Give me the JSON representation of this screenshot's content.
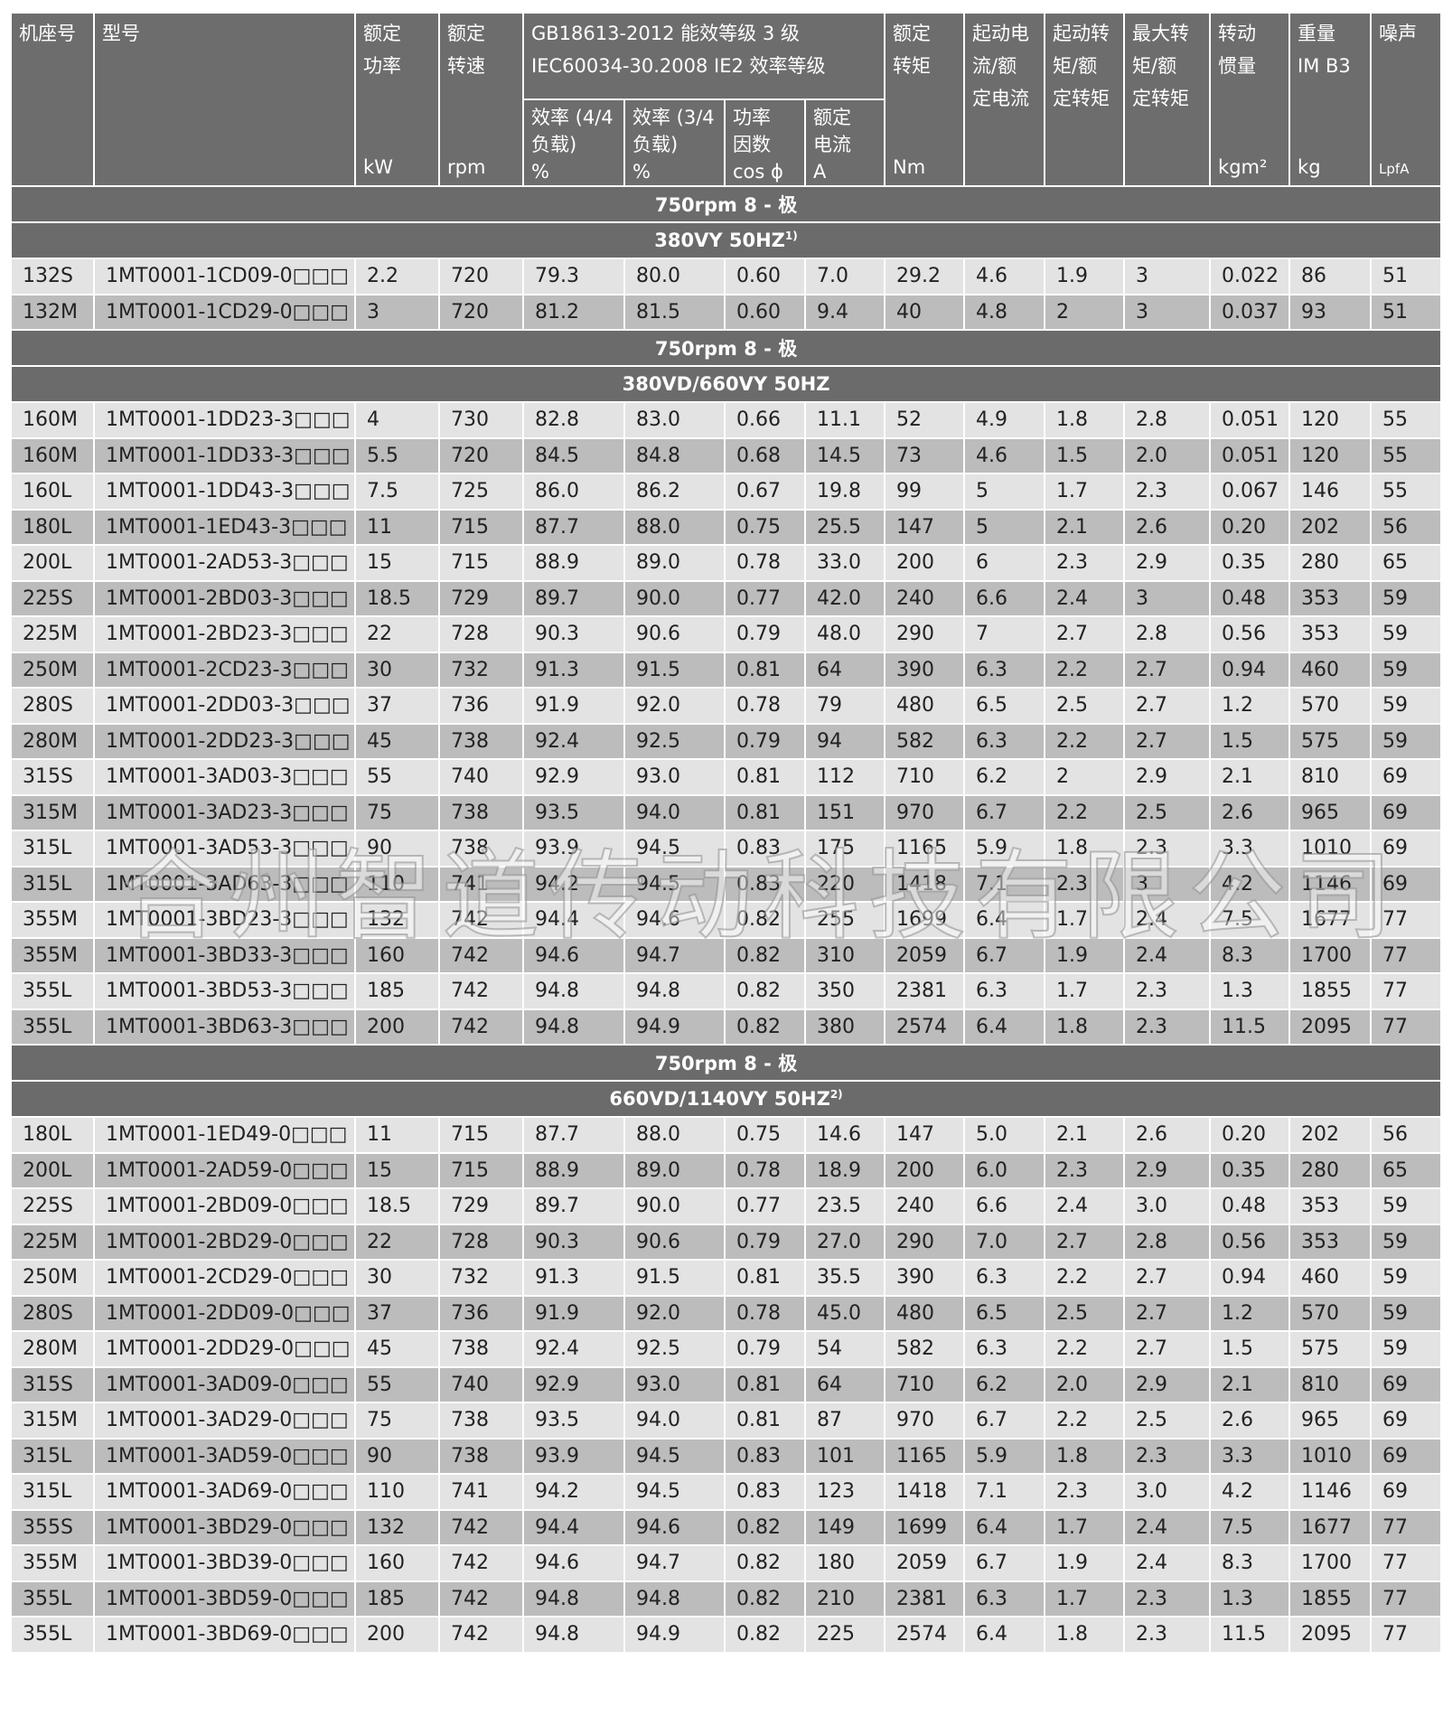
{
  "headers": {
    "frame": "机座号",
    "type": "型号",
    "power": "额定功率",
    "power_unit": "kW",
    "speed": "额定转速",
    "speed_unit": "rpm",
    "std_line1": "GB18613-2012 能效等级 3 级",
    "std_line2": "IEC60034-30.2008 IE2 效率等级",
    "eff44": "效率 (4/4 负载)",
    "eff44_unit": "%",
    "eff34": "效率 (3/4 负载)",
    "eff34_unit": "%",
    "pf": "功率因数",
    "pf_unit": "cos ϕ",
    "current": "额定电流",
    "current_unit": "A",
    "torque": "额定转矩",
    "torque_unit": "Nm",
    "start_current": "起动电流/额定电流",
    "start_torque": "起动转矩/额定转矩",
    "max_torque": "最大转矩/额定转矩",
    "inertia": "转动惯量",
    "inertia_unit": "kgm²",
    "weight": "重量",
    "weight_sub": "IM B3",
    "weight_unit": "kg",
    "noise": "噪声",
    "noise_unit": "LpfA"
  },
  "watermark": "合州智道传动科技有限公司",
  "sections": [
    {
      "title": "750rpm 8 - 极",
      "subtitle": "380VY  50HZ",
      "note": "1)",
      "rows": [
        [
          "132S",
          "1MT0001-1CD09-0□□□",
          "2.2",
          "720",
          "79.3",
          "80.0",
          "0.60",
          "7.0",
          "29.2",
          "4.6",
          "1.9",
          "3",
          "0.022",
          "86",
          "51"
        ],
        [
          "132M",
          "1MT0001-1CD29-0□□□",
          "3",
          "720",
          "81.2",
          "81.5",
          "0.60",
          "9.4",
          "40",
          "4.8",
          "2",
          "3",
          "0.037",
          "93",
          "51"
        ]
      ]
    },
    {
      "title": "750rpm 8 - 极",
      "subtitle": "380VD/660VY 50HZ",
      "note": "",
      "rows": [
        [
          "160M",
          "1MT0001-1DD23-3□□□",
          "4",
          "730",
          "82.8",
          "83.0",
          "0.66",
          "11.1",
          "52",
          "4.9",
          "1.8",
          "2.8",
          "0.051",
          "120",
          "55"
        ],
        [
          "160M",
          "1MT0001-1DD33-3□□□",
          "5.5",
          "720",
          "84.5",
          "84.8",
          "0.68",
          "14.5",
          "73",
          "4.6",
          "1.5",
          "2.0",
          "0.051",
          "120",
          "55"
        ],
        [
          "160L",
          "1MT0001-1DD43-3□□□",
          "7.5",
          "725",
          "86.0",
          "86.2",
          "0.67",
          "19.8",
          "99",
          "5",
          "1.7",
          "2.3",
          "0.067",
          "146",
          "55"
        ],
        [
          "180L",
          "1MT0001-1ED43-3□□□",
          "11",
          "715",
          "87.7",
          "88.0",
          "0.75",
          "25.5",
          "147",
          "5",
          "2.1",
          "2.6",
          "0.20",
          "202",
          "56"
        ],
        [
          "200L",
          "1MT0001-2AD53-3□□□",
          "15",
          "715",
          "88.9",
          "89.0",
          "0.78",
          "33.0",
          "200",
          "6",
          "2.3",
          "2.9",
          "0.35",
          "280",
          "65"
        ],
        [
          "225S",
          "1MT0001-2BD03-3□□□",
          "18.5",
          "729",
          "89.7",
          "90.0",
          "0.77",
          "42.0",
          "240",
          "6.6",
          "2.4",
          "3",
          "0.48",
          "353",
          "59"
        ],
        [
          "225M",
          "1MT0001-2BD23-3□□□",
          "22",
          "728",
          "90.3",
          "90.6",
          "0.79",
          "48.0",
          "290",
          "7",
          "2.7",
          "2.8",
          "0.56",
          "353",
          "59"
        ],
        [
          "250M",
          "1MT0001-2CD23-3□□□",
          "30",
          "732",
          "91.3",
          "91.5",
          "0.81",
          "64",
          "390",
          "6.3",
          "2.2",
          "2.7",
          "0.94",
          "460",
          "59"
        ],
        [
          "280S",
          "1MT0001-2DD03-3□□□",
          "37",
          "736",
          "91.9",
          "92.0",
          "0.78",
          "79",
          "480",
          "6.5",
          "2.5",
          "2.7",
          "1.2",
          "570",
          "59"
        ],
        [
          "280M",
          "1MT0001-2DD23-3□□□",
          "45",
          "738",
          "92.4",
          "92.5",
          "0.79",
          "94",
          "582",
          "6.3",
          "2.2",
          "2.7",
          "1.5",
          "575",
          "59"
        ],
        [
          "315S",
          "1MT0001-3AD03-3□□□",
          "55",
          "740",
          "92.9",
          "93.0",
          "0.81",
          "112",
          "710",
          "6.2",
          "2",
          "2.9",
          "2.1",
          "810",
          "69"
        ],
        [
          "315M",
          "1MT0001-3AD23-3□□□",
          "75",
          "738",
          "93.5",
          "94.0",
          "0.81",
          "151",
          "970",
          "6.7",
          "2.2",
          "2.5",
          "2.6",
          "965",
          "69"
        ],
        [
          "315L",
          "1MT0001-3AD53-3□□□",
          "90",
          "738",
          "93.9",
          "94.5",
          "0.83",
          "175",
          "1165",
          "5.9",
          "1.8",
          "2.3",
          "3.3",
          "1010",
          "69"
        ],
        [
          "315L",
          "1MT0001-3AD63-3□□□",
          "110",
          "741",
          "94.2",
          "94.5",
          "0.83",
          "220",
          "1418",
          "7.1",
          "2.3",
          "3",
          "4.2",
          "1146",
          "69"
        ],
        [
          "355M",
          "1MT0001-3BD23-3□□□",
          "132",
          "742",
          "94.4",
          "94.6",
          "0.82",
          "255",
          "1699",
          "6.4",
          "1.7",
          "2.4",
          "7.5",
          "1677",
          "77"
        ],
        [
          "355M",
          "1MT0001-3BD33-3□□□",
          "160",
          "742",
          "94.6",
          "94.7",
          "0.82",
          "310",
          "2059",
          "6.7",
          "1.9",
          "2.4",
          "8.3",
          "1700",
          "77"
        ],
        [
          "355L",
          "1MT0001-3BD53-3□□□",
          "185",
          "742",
          "94.8",
          "94.8",
          "0.82",
          "350",
          "2381",
          "6.3",
          "1.7",
          "2.3",
          "1.3",
          "1855",
          "77"
        ],
        [
          "355L",
          "1MT0001-3BD63-3□□□",
          "200",
          "742",
          "94.8",
          "94.9",
          "0.82",
          "380",
          "2574",
          "6.4",
          "1.8",
          "2.3",
          "11.5",
          "2095",
          "77"
        ]
      ]
    },
    {
      "title": "750rpm 8 - 极",
      "subtitle": "660VD/1140VY 50HZ",
      "note": "2)",
      "rows": [
        [
          "180L",
          "1MT0001-1ED49-0□□□",
          "11",
          "715",
          "87.7",
          "88.0",
          "0.75",
          "14.6",
          "147",
          "5.0",
          "2.1",
          "2.6",
          "0.20",
          "202",
          "56"
        ],
        [
          "200L",
          "1MT0001-2AD59-0□□□",
          "15",
          "715",
          "88.9",
          "89.0",
          "0.78",
          "18.9",
          "200",
          "6.0",
          "2.3",
          "2.9",
          "0.35",
          "280",
          "65"
        ],
        [
          "225S",
          "1MT0001-2BD09-0□□□",
          "18.5",
          "729",
          "89.7",
          "90.0",
          "0.77",
          "23.5",
          "240",
          "6.6",
          "2.4",
          "3.0",
          "0.48",
          "353",
          "59"
        ],
        [
          "225M",
          "1MT0001-2BD29-0□□□",
          "22",
          "728",
          "90.3",
          "90.6",
          "0.79",
          "27.0",
          "290",
          "7.0",
          "2.7",
          "2.8",
          "0.56",
          "353",
          "59"
        ],
        [
          "250M",
          "1MT0001-2CD29-0□□□",
          "30",
          "732",
          "91.3",
          "91.5",
          "0.81",
          "35.5",
          "390",
          "6.3",
          "2.2",
          "2.7",
          "0.94",
          "460",
          "59"
        ],
        [
          "280S",
          "1MT0001-2DD09-0□□□",
          "37",
          "736",
          "91.9",
          "92.0",
          "0.78",
          "45.0",
          "480",
          "6.5",
          "2.5",
          "2.7",
          "1.2",
          "570",
          "59"
        ],
        [
          "280M",
          "1MT0001-2DD29-0□□□",
          "45",
          "738",
          "92.4",
          "92.5",
          "0.79",
          "54",
          "582",
          "6.3",
          "2.2",
          "2.7",
          "1.5",
          "575",
          "59"
        ],
        [
          "315S",
          "1MT0001-3AD09-0□□□",
          "55",
          "740",
          "92.9",
          "93.0",
          "0.81",
          "64",
          "710",
          "6.2",
          "2.0",
          "2.9",
          "2.1",
          "810",
          "69"
        ],
        [
          "315M",
          "1MT0001-3AD29-0□□□",
          "75",
          "738",
          "93.5",
          "94.0",
          "0.81",
          "87",
          "970",
          "6.7",
          "2.2",
          "2.5",
          "2.6",
          "965",
          "69"
        ],
        [
          "315L",
          "1MT0001-3AD59-0□□□",
          "90",
          "738",
          "93.9",
          "94.5",
          "0.83",
          "101",
          "1165",
          "5.9",
          "1.8",
          "2.3",
          "3.3",
          "1010",
          "69"
        ],
        [
          "315L",
          "1MT0001-3AD69-0□□□",
          "110",
          "741",
          "94.2",
          "94.5",
          "0.83",
          "123",
          "1418",
          "7.1",
          "2.3",
          "3.0",
          "4.2",
          "1146",
          "69"
        ],
        [
          "355S",
          "1MT0001-3BD29-0□□□",
          "132",
          "742",
          "94.4",
          "94.6",
          "0.82",
          "149",
          "1699",
          "6.4",
          "1.7",
          "2.4",
          "7.5",
          "1677",
          "77"
        ],
        [
          "355M",
          "1MT0001-3BD39-0□□□",
          "160",
          "742",
          "94.6",
          "94.7",
          "0.82",
          "180",
          "2059",
          "6.7",
          "1.9",
          "2.4",
          "8.3",
          "1700",
          "77"
        ],
        [
          "355L",
          "1MT0001-3BD59-0□□□",
          "185",
          "742",
          "94.8",
          "94.8",
          "0.82",
          "210",
          "2381",
          "6.3",
          "1.7",
          "2.3",
          "1.3",
          "1855",
          "77"
        ],
        [
          "355L",
          "1MT0001-3BD69-0□□□",
          "200",
          "742",
          "94.8",
          "94.9",
          "0.82",
          "225",
          "2574",
          "6.4",
          "1.8",
          "2.3",
          "11.5",
          "2095",
          "77"
        ]
      ]
    }
  ]
}
